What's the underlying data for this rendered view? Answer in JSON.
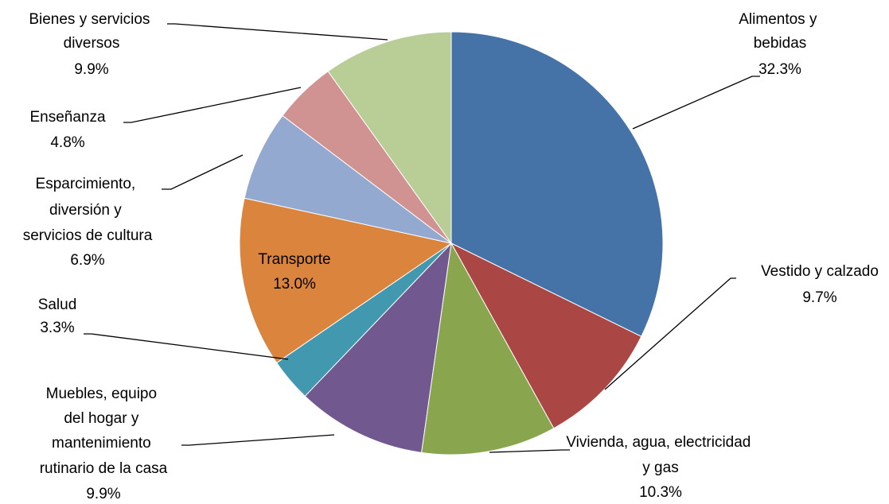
{
  "chart_data": {
    "type": "pie",
    "categories": [
      "Alimentos y bebidas",
      "Vestido y calzado",
      "Vivienda, agua, electricidad y gas",
      "Muebles, equipo del hogar y mantenimiento rutinario de la casa",
      "Salud",
      "Transporte",
      "Esparcimiento, diversión y servicios de cultura",
      "Enseñanza",
      "Bienes y servicios diversos"
    ],
    "values": [
      32.3,
      9.7,
      10.3,
      9.9,
      3.3,
      13.0,
      6.9,
      4.8,
      9.9
    ],
    "value_labels": [
      "32.3%",
      "9.7%",
      "10.3%",
      "9.9%",
      "3.3%",
      "13.0%",
      "6.9%",
      "4.8%",
      "9.9%"
    ],
    "colors": [
      "#4572a7",
      "#aa4643",
      "#89a54e",
      "#71588f",
      "#4198af",
      "#db843d",
      "#93a9cf",
      "#d19392",
      "#b9cd96"
    ]
  }
}
